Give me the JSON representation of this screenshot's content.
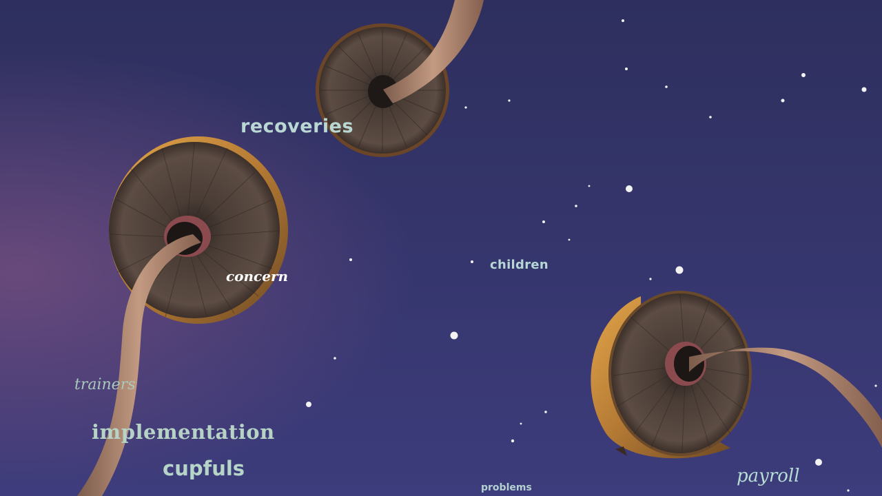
{
  "scene": {
    "description_icons": [
      "mushroom-cap-top",
      "mushroom-cap-left",
      "mushroom-cap-right",
      "stars"
    ],
    "colors": {
      "sky_top": "#2e2f5e",
      "sky_bottom": "#3b3b7a",
      "sky_left_glow": "#6a4a78",
      "gill_dark": "#3e342f",
      "gill_mid": "#5a4a40",
      "cap_rim": "#a9753e",
      "cap_rim_light": "#d4993f",
      "stem": "#b48a74",
      "stem_dark": "#7a5a4a",
      "star": "#f4f4f4"
    }
  },
  "words": {
    "recoveries": "recoveries",
    "concern": "concern",
    "children": "children",
    "trainers": "trainers",
    "implementation": "implementation",
    "cupfuls": "cupfuls",
    "problems": "problems",
    "payroll": "payroll"
  }
}
